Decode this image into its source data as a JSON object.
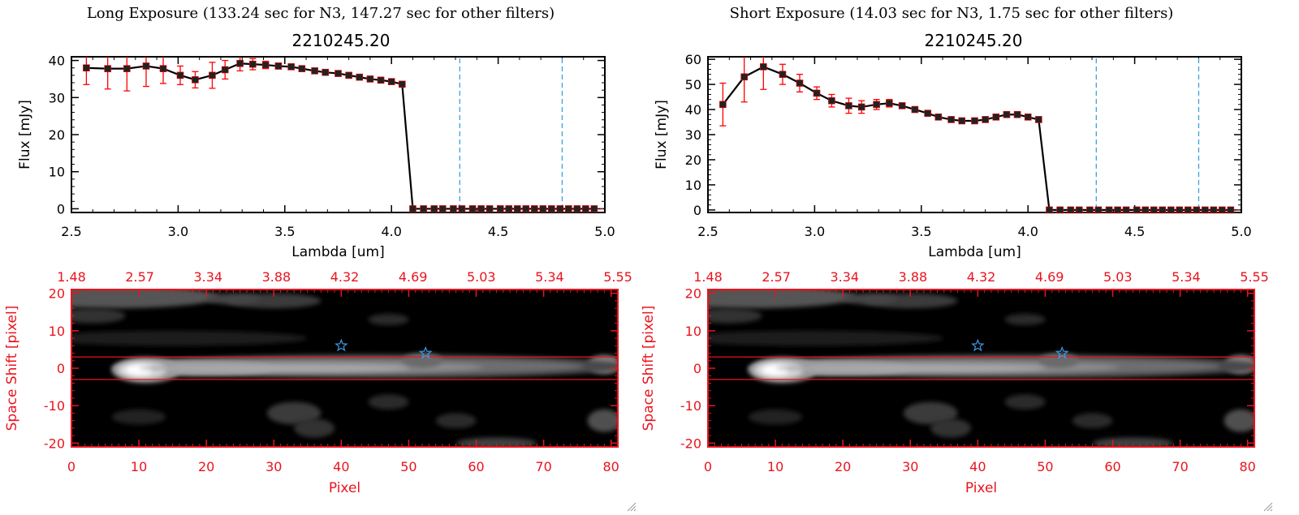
{
  "panels": [
    {
      "exposure_title": "Long Exposure (133.24 sec for N3, 147.27 sec for other filters)",
      "object_id": "2210245.20"
    },
    {
      "exposure_title": "Short Exposure (14.03 sec for N3, 1.75 sec for other filters)",
      "object_id": "2210245.20"
    }
  ],
  "colors": {
    "axis": "#000000",
    "errorbar": "#ff0000",
    "marker": "#000000",
    "vline": "#3ba0e0",
    "image_axis": "#e8141e",
    "star": "#3b9be8"
  },
  "chart_data": [
    {
      "type": "line",
      "xlabel": "Lambda [um]",
      "ylabel": "Flux [mJy]",
      "xlim": [
        2.5,
        5.0
      ],
      "ylim": [
        -1,
        41
      ],
      "xticks": [
        "2.5",
        "3.0",
        "3.5",
        "4.0",
        "4.5",
        "5.0"
      ],
      "yticks": [
        "0",
        "10",
        "20",
        "30",
        "40"
      ],
      "vlines": [
        4.32,
        4.8
      ],
      "series": [
        {
          "x": [
            2.57,
            2.67,
            2.76,
            2.85,
            2.93,
            3.01,
            3.08,
            3.16,
            3.22,
            3.29,
            3.35,
            3.41,
            3.47,
            3.53,
            3.58,
            3.64,
            3.69,
            3.75,
            3.8,
            3.85,
            3.9,
            3.95,
            4.0,
            4.05,
            4.1,
            4.15,
            4.2,
            4.24,
            4.29,
            4.33,
            4.38,
            4.42,
            4.46,
            4.51,
            4.55,
            4.59,
            4.63,
            4.67,
            4.71,
            4.75,
            4.79,
            4.83,
            4.87,
            4.91,
            4.95
          ],
          "y": [
            38.0,
            37.8,
            37.8,
            38.5,
            37.8,
            36.0,
            34.8,
            36.0,
            37.5,
            39.2,
            39.0,
            38.8,
            38.5,
            38.3,
            37.8,
            37.2,
            36.8,
            36.5,
            36.0,
            35.5,
            35.0,
            34.7,
            34.3,
            33.6,
            0,
            0,
            0,
            0,
            0,
            0,
            0,
            0,
            0,
            0,
            0,
            0,
            0,
            0,
            0,
            0,
            0,
            0,
            0,
            0,
            0
          ],
          "err": [
            4.5,
            5.5,
            6.0,
            5.5,
            4.0,
            2.5,
            2.2,
            3.5,
            2.5,
            2.0,
            1.5,
            1.0,
            0.8,
            0.6,
            0.5,
            0.5,
            0.5,
            0.5,
            0.5,
            0.5,
            0.5,
            0.5,
            0.5,
            0.5,
            0,
            0,
            0,
            0,
            0,
            0,
            0,
            0,
            0,
            0,
            0,
            0,
            0,
            0,
            0,
            0,
            0,
            0,
            0,
            0,
            0
          ]
        }
      ]
    },
    {
      "type": "line",
      "xlabel": "Lambda [um]",
      "ylabel": "Flux [mJy]",
      "xlim": [
        2.5,
        5.0
      ],
      "ylim": [
        -1,
        61
      ],
      "xticks": [
        "2.5",
        "3.0",
        "3.5",
        "4.0",
        "4.5",
        "5.0"
      ],
      "yticks": [
        "0",
        "10",
        "20",
        "30",
        "40",
        "50",
        "60"
      ],
      "vlines": [
        4.32,
        4.8
      ],
      "series": [
        {
          "x": [
            2.57,
            2.67,
            2.76,
            2.85,
            2.93,
            3.01,
            3.08,
            3.16,
            3.22,
            3.29,
            3.35,
            3.41,
            3.47,
            3.53,
            3.58,
            3.64,
            3.69,
            3.75,
            3.8,
            3.85,
            3.9,
            3.95,
            4.0,
            4.05,
            4.1,
            4.15,
            4.2,
            4.24,
            4.29,
            4.33,
            4.38,
            4.42,
            4.46,
            4.51,
            4.55,
            4.59,
            4.63,
            4.67,
            4.71,
            4.75,
            4.79,
            4.83,
            4.87,
            4.91,
            4.95
          ],
          "y": [
            42.0,
            53.0,
            57.0,
            54.0,
            50.5,
            46.5,
            43.5,
            41.5,
            41.0,
            42.0,
            42.5,
            41.5,
            40.0,
            38.5,
            37.0,
            36.0,
            35.5,
            35.5,
            36.0,
            37.0,
            38.0,
            38.0,
            37.0,
            36.0,
            0,
            0,
            0,
            0,
            0,
            0,
            0,
            0,
            0,
            0,
            0,
            0,
            0,
            0,
            0,
            0,
            0,
            0,
            0,
            0,
            0
          ],
          "err": [
            8.5,
            10.0,
            9.0,
            4.0,
            3.5,
            2.5,
            2.5,
            3.0,
            2.5,
            2.0,
            1.5,
            1.0,
            0.5,
            0.5,
            0.5,
            0.5,
            0.5,
            0.5,
            0.5,
            0.5,
            0.5,
            0.5,
            0.5,
            0.5,
            0,
            0,
            0,
            0,
            0,
            0,
            0,
            0,
            0,
            0,
            0,
            0,
            0,
            0,
            0,
            0,
            0,
            0,
            0,
            0,
            0
          ]
        }
      ]
    },
    {
      "type": "heatmap",
      "xlabel": "Pixel",
      "ylabel": "Space Shift [pixel]",
      "xlim": [
        0,
        81
      ],
      "ylim": [
        -21,
        21
      ],
      "xticks": [
        "0",
        "10",
        "20",
        "30",
        "40",
        "50",
        "60",
        "70",
        "80"
      ],
      "yticks": [
        "-20",
        "-10",
        "0",
        "10",
        "20"
      ],
      "top_ticks": [
        "1.48",
        "2.57",
        "3.34",
        "3.88",
        "4.32",
        "4.69",
        "5.03",
        "5.34",
        "5.55"
      ],
      "extraction_lines": [
        3,
        -3
      ],
      "stars": [
        [
          40,
          6
        ],
        [
          52.5,
          4
        ]
      ]
    },
    {
      "type": "heatmap",
      "xlabel": "Pixel",
      "ylabel": "Space Shift [pixel]",
      "xlim": [
        0,
        81
      ],
      "ylim": [
        -21,
        21
      ],
      "xticks": [
        "0",
        "10",
        "20",
        "30",
        "40",
        "50",
        "60",
        "70",
        "80"
      ],
      "yticks": [
        "-20",
        "-10",
        "0",
        "10",
        "20"
      ],
      "top_ticks": [
        "1.48",
        "2.57",
        "3.34",
        "3.88",
        "4.32",
        "4.69",
        "5.03",
        "5.34",
        "5.55"
      ],
      "extraction_lines": [
        3,
        -3
      ],
      "stars": [
        [
          40,
          6
        ],
        [
          52.5,
          4
        ]
      ]
    }
  ]
}
